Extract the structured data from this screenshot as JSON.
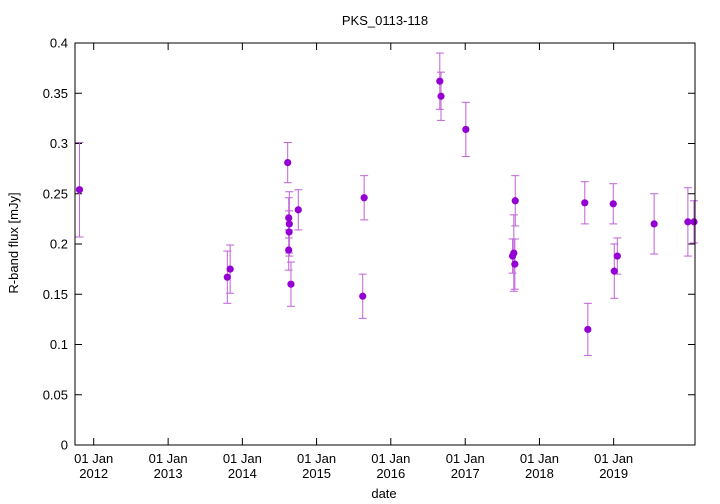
{
  "chart_data": {
    "type": "scatter",
    "title": "PKS_0113-118",
    "xlabel": "date",
    "ylabel": "R-band flux [mJy]",
    "x_type": "date",
    "xlim": [
      "2011-10-01",
      "2020-02-05"
    ],
    "ylim": [
      0,
      0.4
    ],
    "yticks": [
      0,
      0.05,
      0.1,
      0.15,
      0.2,
      0.25,
      0.3,
      0.35,
      0.4
    ],
    "ytick_labels": [
      "0",
      "0.05",
      "0.1",
      "0.15",
      "0.2",
      "0.25",
      "0.3",
      "0.35",
      "0.4"
    ],
    "xticks": [
      {
        "date": "2012-01-01",
        "line1": "01 Jan",
        "line2": "2012"
      },
      {
        "date": "2013-01-01",
        "line1": "01 Jan",
        "line2": "2013"
      },
      {
        "date": "2014-01-01",
        "line1": "01 Jan",
        "line2": "2014"
      },
      {
        "date": "2015-01-01",
        "line1": "01 Jan",
        "line2": "2015"
      },
      {
        "date": "2016-01-01",
        "line1": "01 Jan",
        "line2": "2016"
      },
      {
        "date": "2017-01-01",
        "line1": "01 Jan",
        "line2": "2017"
      },
      {
        "date": "2018-01-01",
        "line1": "01 Jan",
        "line2": "2018"
      },
      {
        "date": "2019-01-01",
        "line1": "01 Jan",
        "line2": "2019"
      }
    ],
    "marker_color": "#9400d3",
    "errorbar_color": "#c060d8",
    "grid": false,
    "legend": "none",
    "points": [
      {
        "x": "2011-10-23",
        "y": 0.254,
        "err": 0.047
      },
      {
        "x": "2013-10-19",
        "y": 0.167,
        "err": 0.026
      },
      {
        "x": "2013-11-02",
        "y": 0.175,
        "err": 0.024
      },
      {
        "x": "2014-08-12",
        "y": 0.281,
        "err": 0.02
      },
      {
        "x": "2014-08-17",
        "y": 0.226,
        "err": 0.02
      },
      {
        "x": "2014-08-20",
        "y": 0.22,
        "err": 0.032
      },
      {
        "x": "2014-08-19",
        "y": 0.212,
        "err": 0.021
      },
      {
        "x": "2014-08-17",
        "y": 0.194,
        "err": 0.02
      },
      {
        "x": "2014-08-28",
        "y": 0.16,
        "err": 0.022
      },
      {
        "x": "2014-10-03",
        "y": 0.234,
        "err": 0.02
      },
      {
        "x": "2015-08-16",
        "y": 0.148,
        "err": 0.022
      },
      {
        "x": "2015-08-23",
        "y": 0.246,
        "err": 0.022
      },
      {
        "x": "2016-08-29",
        "y": 0.362,
        "err": 0.028
      },
      {
        "x": "2016-09-04",
        "y": 0.347,
        "err": 0.024
      },
      {
        "x": "2017-01-04",
        "y": 0.314,
        "err": 0.027
      },
      {
        "x": "2017-08-22",
        "y": 0.188,
        "err": 0.017
      },
      {
        "x": "2017-08-28",
        "y": 0.191,
        "err": 0.038
      },
      {
        "x": "2017-09-02",
        "y": 0.18,
        "err": 0.025
      },
      {
        "x": "2017-09-04",
        "y": 0.243,
        "err": 0.025
      },
      {
        "x": "2018-08-12",
        "y": 0.241,
        "err": 0.021
      },
      {
        "x": "2018-08-27",
        "y": 0.115,
        "err": 0.026
      },
      {
        "x": "2018-12-30",
        "y": 0.24,
        "err": 0.02
      },
      {
        "x": "2019-01-04",
        "y": 0.173,
        "err": 0.027
      },
      {
        "x": "2019-01-19",
        "y": 0.188,
        "err": 0.018
      },
      {
        "x": "2019-07-19",
        "y": 0.22,
        "err": 0.03
      },
      {
        "x": "2020-01-01",
        "y": 0.222,
        "err": 0.034
      },
      {
        "x": "2020-01-31",
        "y": 0.222,
        "err": 0.021
      }
    ]
  }
}
